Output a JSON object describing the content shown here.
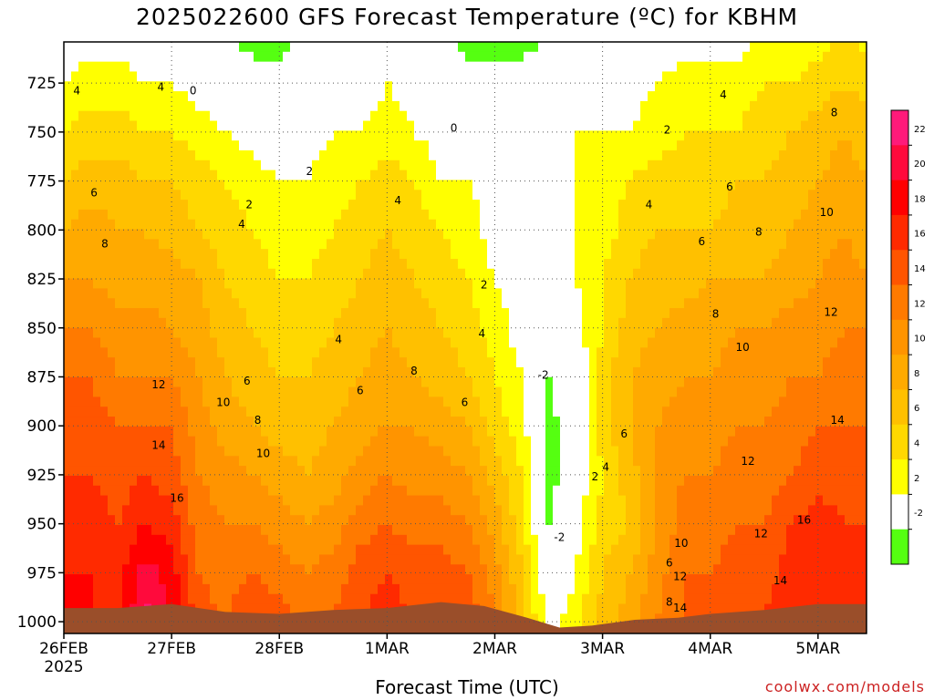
{
  "title": "2025022600 GFS Forecast Temperature (ºC) for KBHM",
  "xlabel": "Forecast Time (UTC)",
  "credit": "coolwx.com/models",
  "colors": {
    "ground": "#9a4e2a",
    "contour_line": "#000000",
    "zero_line": "#c0106a",
    "grid": "#555555"
  },
  "chart_data": {
    "type": "heatmap",
    "title": "2025022600 GFS Forecast Temperature (ºC) for KBHM",
    "xlabel": "Forecast Time (UTC)",
    "ylabel": "",
    "x_ticks": [
      "26FEB",
      "27FEB",
      "28FEB",
      "1MAR",
      "2MAR",
      "3MAR",
      "4MAR",
      "5MAR"
    ],
    "x_tick_days": [
      0,
      1,
      2,
      3,
      4,
      5,
      6,
      7
    ],
    "x_first_sublabel": "2025",
    "xlim_days": [
      0,
      7.45
    ],
    "y_ticks": [
      725,
      750,
      775,
      800,
      825,
      850,
      875,
      900,
      925,
      950,
      975,
      1000
    ],
    "ylim": [
      1006,
      704
    ],
    "y_reversed": true,
    "grid": true,
    "colorbar_ticks": [
      22,
      20,
      18,
      16,
      14,
      12,
      10,
      8,
      6,
      4,
      2,
      -2
    ],
    "colorbar_levels": [
      {
        "from": 22,
        "to": 24,
        "color": "#ff1a7a"
      },
      {
        "from": 20,
        "to": 22,
        "color": "#ff0a3c"
      },
      {
        "from": 18,
        "to": 20,
        "color": "#ff0000"
      },
      {
        "from": 16,
        "to": 18,
        "color": "#ff2a00"
      },
      {
        "from": 14,
        "to": 16,
        "color": "#ff5500"
      },
      {
        "from": 12,
        "to": 14,
        "color": "#ff7a00"
      },
      {
        "from": 10,
        "to": 12,
        "color": "#ff9400"
      },
      {
        "from": 8,
        "to": 10,
        "color": "#ffaa00"
      },
      {
        "from": 6,
        "to": 8,
        "color": "#ffc000"
      },
      {
        "from": 4,
        "to": 6,
        "color": "#ffd800"
      },
      {
        "from": 2,
        "to": 4,
        "color": "#ffff00"
      },
      {
        "from": -2,
        "to": 2,
        "color": "#ffffff"
      },
      {
        "from": -4,
        "to": -2,
        "color": "#55ff11"
      }
    ],
    "surface_pressure_profile": [
      [
        0,
        993
      ],
      [
        0.5,
        993
      ],
      [
        1.0,
        991
      ],
      [
        1.5,
        995
      ],
      [
        2.0,
        996
      ],
      [
        2.5,
        994
      ],
      [
        3.0,
        993
      ],
      [
        3.5,
        990
      ],
      [
        3.9,
        992
      ],
      [
        4.3,
        998
      ],
      [
        4.6,
        1003
      ],
      [
        4.9,
        1002
      ],
      [
        5.3,
        999
      ],
      [
        5.7,
        998
      ],
      [
        6.0,
        996
      ],
      [
        6.5,
        994
      ],
      [
        7.0,
        991
      ],
      [
        7.45,
        991
      ]
    ],
    "temperature_columns": [
      {
        "day": 0.0,
        "t": [
          2,
          4,
          6,
          8,
          10,
          12,
          14,
          15,
          16,
          17,
          18,
          18
        ]
      },
      {
        "day": 0.25,
        "t": [
          3,
          5,
          7,
          9,
          10,
          12,
          14,
          15,
          16,
          17,
          18,
          18
        ]
      },
      {
        "day": 0.5,
        "t": [
          3,
          5,
          7,
          8,
          9,
          11,
          12,
          14,
          15,
          16,
          17,
          17
        ]
      },
      {
        "day": 0.75,
        "t": [
          2,
          4,
          6,
          8,
          9,
          11,
          12,
          14,
          16,
          18,
          21,
          23
        ]
      },
      {
        "day": 1.0,
        "t": [
          2,
          4,
          6,
          7,
          9,
          10,
          12,
          14,
          15,
          17,
          19,
          20
        ]
      },
      {
        "day": 1.25,
        "t": [
          1,
          3,
          5,
          6,
          8,
          9,
          10,
          11,
          12,
          13,
          14,
          15
        ]
      },
      {
        "day": 1.5,
        "t": [
          0,
          2,
          4,
          5,
          6,
          7,
          8,
          9,
          11,
          12,
          13,
          14
        ]
      },
      {
        "day": 1.75,
        "t": [
          -1,
          1,
          3,
          4,
          5,
          6,
          7,
          8,
          10,
          12,
          14,
          16
        ]
      },
      {
        "day": 2.0,
        "t": [
          -1,
          0,
          2,
          3,
          4,
          5,
          6,
          7,
          9,
          11,
          13,
          15
        ]
      },
      {
        "day": 2.25,
        "t": [
          0,
          1,
          2,
          3,
          4,
          5,
          6,
          7,
          8,
          10,
          12,
          14
        ]
      },
      {
        "day": 2.5,
        "t": [
          1,
          2,
          3,
          4,
          5,
          6,
          7,
          8,
          9,
          11,
          13,
          14
        ]
      },
      {
        "day": 2.75,
        "t": [
          0,
          2,
          4,
          5,
          6,
          7,
          8,
          9,
          11,
          13,
          15,
          16
        ]
      },
      {
        "day": 3.0,
        "t": [
          2,
          3,
          5,
          6,
          7,
          8,
          9,
          10,
          12,
          14,
          16,
          17
        ]
      },
      {
        "day": 3.25,
        "t": [
          1,
          2,
          4,
          5,
          6,
          7,
          8,
          10,
          11,
          13,
          15,
          16
        ]
      },
      {
        "day": 3.5,
        "t": [
          0,
          1,
          2,
          4,
          5,
          6,
          7,
          9,
          11,
          13,
          15,
          15
        ]
      },
      {
        "day": 3.75,
        "t": [
          -1,
          1,
          2,
          3,
          4,
          5,
          6,
          8,
          10,
          12,
          14,
          16
        ]
      },
      {
        "day": 4.0,
        "t": [
          -1,
          0,
          1,
          1,
          2,
          3,
          4,
          5,
          7,
          9,
          11,
          12
        ]
      },
      {
        "day": 4.25,
        "t": [
          -1,
          0,
          0,
          1,
          1,
          1,
          2,
          3,
          4,
          5,
          6,
          7
        ]
      },
      {
        "day": 4.5,
        "t": [
          0,
          0,
          0,
          0,
          0,
          0,
          -2,
          -3,
          -3,
          -2,
          0,
          1
        ]
      },
      {
        "day": 4.75,
        "t": [
          1,
          2,
          2,
          2,
          2,
          1,
          0,
          0,
          0,
          1,
          2,
          3
        ]
      },
      {
        "day": 5.0,
        "t": [
          1,
          2,
          3,
          3,
          4,
          4,
          5,
          5,
          4,
          5,
          6,
          7
        ]
      },
      {
        "day": 5.25,
        "t": [
          1,
          2,
          4,
          5,
          6,
          7,
          8,
          8,
          7,
          6,
          8,
          9
        ]
      },
      {
        "day": 5.5,
        "t": [
          2,
          3,
          5,
          6,
          7,
          8,
          9,
          10,
          10,
          10,
          11,
          12
        ]
      },
      {
        "day": 5.75,
        "t": [
          3,
          4,
          5,
          6,
          7,
          9,
          10,
          11,
          12,
          13,
          14,
          14
        ]
      },
      {
        "day": 6.0,
        "t": [
          3,
          4,
          5,
          6,
          8,
          9,
          10,
          11,
          12,
          13,
          14,
          15
        ]
      },
      {
        "day": 6.25,
        "t": [
          3,
          4,
          6,
          7,
          8,
          10,
          11,
          12,
          13,
          14,
          15,
          16
        ]
      },
      {
        "day": 6.5,
        "t": [
          4,
          5,
          6,
          7,
          8,
          10,
          11,
          12,
          13,
          14,
          15,
          16
        ]
      },
      {
        "day": 6.75,
        "t": [
          4,
          6,
          7,
          8,
          9,
          11,
          12,
          13,
          14,
          16,
          17,
          18
        ]
      },
      {
        "day": 7.0,
        "t": [
          5,
          7,
          8,
          9,
          10,
          11,
          12,
          14,
          15,
          17,
          18,
          18
        ]
      },
      {
        "day": 7.25,
        "t": [
          6,
          8,
          9,
          10,
          11,
          12,
          13,
          14,
          15,
          16,
          17,
          17
        ]
      },
      {
        "day": 7.45,
        "t": [
          5,
          7,
          8,
          9,
          10,
          12,
          13,
          14,
          15,
          16,
          16,
          16
        ]
      }
    ],
    "contour_labels": [
      {
        "day": 0.12,
        "p": 729,
        "text": "4"
      },
      {
        "day": 0.9,
        "p": 727,
        "text": "4"
      },
      {
        "day": 1.2,
        "p": 729,
        "text": "0"
      },
      {
        "day": 0.28,
        "p": 781,
        "text": "6"
      },
      {
        "day": 0.38,
        "p": 807,
        "text": "8"
      },
      {
        "day": 1.72,
        "p": 787,
        "text": "2"
      },
      {
        "day": 1.65,
        "p": 797,
        "text": "4"
      },
      {
        "day": 2.28,
        "p": 770,
        "text": "2"
      },
      {
        "day": 2.55,
        "p": 856,
        "text": "4"
      },
      {
        "day": 3.1,
        "p": 785,
        "text": "4"
      },
      {
        "day": 3.62,
        "p": 748,
        "text": "0"
      },
      {
        "day": 3.9,
        "p": 828,
        "text": "2"
      },
      {
        "day": 3.88,
        "p": 853,
        "text": "4"
      },
      {
        "day": 3.25,
        "p": 872,
        "text": "8"
      },
      {
        "day": 2.75,
        "p": 882,
        "text": "6"
      },
      {
        "day": 3.72,
        "p": 888,
        "text": "6"
      },
      {
        "day": 1.7,
        "p": 877,
        "text": "6"
      },
      {
        "day": 1.8,
        "p": 897,
        "text": "8"
      },
      {
        "day": 1.48,
        "p": 888,
        "text": "10"
      },
      {
        "day": 0.88,
        "p": 879,
        "text": "12"
      },
      {
        "day": 0.88,
        "p": 910,
        "text": "14"
      },
      {
        "day": 1.05,
        "p": 937,
        "text": "16"
      },
      {
        "day": 1.85,
        "p": 914,
        "text": "10"
      },
      {
        "day": 4.45,
        "p": 874,
        "text": "-2"
      },
      {
        "day": 4.6,
        "p": 957,
        "text": "-2"
      },
      {
        "day": 4.93,
        "p": 926,
        "text": "2"
      },
      {
        "day": 5.03,
        "p": 921,
        "text": "4"
      },
      {
        "day": 5.2,
        "p": 904,
        "text": "6"
      },
      {
        "day": 5.6,
        "p": 749,
        "text": "2"
      },
      {
        "day": 5.43,
        "p": 787,
        "text": "4"
      },
      {
        "day": 6.12,
        "p": 731,
        "text": "4"
      },
      {
        "day": 5.92,
        "p": 806,
        "text": "6"
      },
      {
        "day": 6.18,
        "p": 778,
        "text": "6"
      },
      {
        "day": 6.05,
        "p": 843,
        "text": "8"
      },
      {
        "day": 6.45,
        "p": 801,
        "text": "8"
      },
      {
        "day": 6.3,
        "p": 860,
        "text": "10"
      },
      {
        "day": 7.15,
        "p": 740,
        "text": "8"
      },
      {
        "day": 7.08,
        "p": 791,
        "text": "10"
      },
      {
        "day": 7.12,
        "p": 842,
        "text": "12"
      },
      {
        "day": 7.18,
        "p": 897,
        "text": "14"
      },
      {
        "day": 6.35,
        "p": 918,
        "text": "12"
      },
      {
        "day": 6.47,
        "p": 955,
        "text": "12"
      },
      {
        "day": 6.87,
        "p": 948,
        "text": "16"
      },
      {
        "day": 6.65,
        "p": 979,
        "text": "14"
      },
      {
        "day": 5.73,
        "p": 960,
        "text": "10"
      },
      {
        "day": 5.62,
        "p": 970,
        "text": "6"
      },
      {
        "day": 5.72,
        "p": 977,
        "text": "12"
      },
      {
        "day": 5.62,
        "p": 990,
        "text": "8"
      },
      {
        "day": 5.72,
        "p": 993,
        "text": "14"
      }
    ]
  }
}
